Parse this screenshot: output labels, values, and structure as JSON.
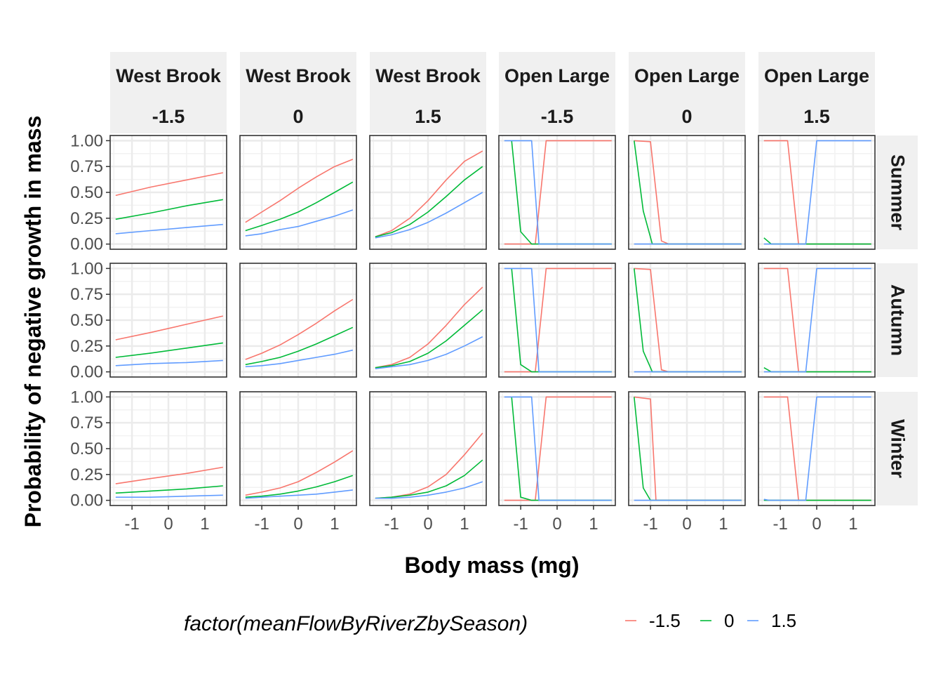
{
  "chart_data": {
    "type": "line",
    "xlabel": "Body mass (mg)",
    "ylabel": "Probability of negative growth in mass",
    "xlim": [
      -1.6,
      1.6
    ],
    "ylim": [
      0,
      1
    ],
    "x_ticks": [
      "-1",
      "0",
      "1"
    ],
    "x_tick_values": [
      -1,
      0,
      1
    ],
    "y_ticks": [
      "0.00",
      "0.25",
      "0.50",
      "0.75",
      "1.00"
    ],
    "y_tick_values": [
      0,
      0.25,
      0.5,
      0.75,
      1
    ],
    "grid": true,
    "legend": {
      "title": "factor(meanFlowByRiverZbySeason)",
      "position": "bottom",
      "entries": [
        {
          "label": "-1.5",
          "color": "#F8766D"
        },
        {
          "label": "0",
          "color": "#00BA38"
        },
        {
          "label": "1.5",
          "color": "#619CFF"
        }
      ]
    },
    "col_facets": [
      {
        "line1": "West Brook",
        "line2": "-1.5"
      },
      {
        "line1": "West Brook",
        "line2": "0"
      },
      {
        "line1": "West Brook",
        "line2": "1.5"
      },
      {
        "line1": "Open Large",
        "line2": "-1.5"
      },
      {
        "line1": "Open Large",
        "line2": "0"
      },
      {
        "line1": "Open Large",
        "line2": "1.5"
      }
    ],
    "row_facets": [
      "Summer",
      "Autumn",
      "Winter"
    ],
    "panels": [
      [
        {
          "series": [
            {
              "x": [
                -1.45,
                -0.5,
                0.5,
                1.5
              ],
              "y": [
                0.47,
                0.55,
                0.62,
                0.69
              ]
            },
            {
              "x": [
                -1.45,
                -0.5,
                0.5,
                1.5
              ],
              "y": [
                0.24,
                0.3,
                0.37,
                0.43
              ]
            },
            {
              "x": [
                -1.45,
                -0.5,
                0.5,
                1.5
              ],
              "y": [
                0.1,
                0.13,
                0.16,
                0.19
              ]
            }
          ]
        },
        {
          "series": [
            {
              "x": [
                -1.45,
                -1.0,
                -0.5,
                0.0,
                0.5,
                1.0,
                1.5
              ],
              "y": [
                0.21,
                0.31,
                0.42,
                0.54,
                0.65,
                0.75,
                0.82
              ]
            },
            {
              "x": [
                -1.45,
                -1.0,
                -0.5,
                0.0,
                0.5,
                1.0,
                1.5
              ],
              "y": [
                0.13,
                0.18,
                0.24,
                0.31,
                0.4,
                0.5,
                0.6
              ]
            },
            {
              "x": [
                -1.45,
                -1.0,
                -0.5,
                0.0,
                0.5,
                1.0,
                1.5
              ],
              "y": [
                0.08,
                0.1,
                0.14,
                0.17,
                0.22,
                0.27,
                0.33
              ]
            }
          ]
        },
        {
          "series": [
            {
              "x": [
                -1.45,
                -1.0,
                -0.5,
                0.0,
                0.5,
                1.0,
                1.5
              ],
              "y": [
                0.07,
                0.13,
                0.25,
                0.42,
                0.62,
                0.8,
                0.9
              ]
            },
            {
              "x": [
                -1.45,
                -1.0,
                -0.5,
                0.0,
                0.5,
                1.0,
                1.5
              ],
              "y": [
                0.07,
                0.11,
                0.19,
                0.31,
                0.46,
                0.62,
                0.75
              ]
            },
            {
              "x": [
                -1.45,
                -1.0,
                -0.5,
                0.0,
                0.5,
                1.0,
                1.5
              ],
              "y": [
                0.06,
                0.09,
                0.14,
                0.21,
                0.3,
                0.4,
                0.5
              ]
            }
          ]
        },
        {
          "series": [
            {
              "x": [
                -1.45,
                -0.6,
                -0.3,
                1.5
              ],
              "y": [
                0.0,
                0.0,
                1.0,
                1.0
              ]
            },
            {
              "x": [
                -1.25,
                -1.0,
                -0.7,
                1.5
              ],
              "y": [
                1.0,
                0.12,
                0.0,
                0.0
              ]
            },
            {
              "x": [
                -1.45,
                -0.7,
                -0.5,
                1.5
              ],
              "y": [
                1.0,
                1.0,
                0.0,
                0.0
              ]
            }
          ]
        },
        {
          "series": [
            {
              "x": [
                -1.45,
                -1.0,
                -0.7,
                -0.5,
                1.5
              ],
              "y": [
                1.0,
                0.99,
                0.03,
                0.0,
                0.0
              ]
            },
            {
              "x": [
                -1.45,
                -1.2,
                -0.95,
                1.5
              ],
              "y": [
                1.0,
                0.32,
                0.0,
                0.0
              ]
            },
            {
              "x": [
                -1.45,
                1.5
              ],
              "y": [
                0.0,
                0.0
              ]
            }
          ]
        },
        {
          "series": [
            {
              "x": [
                -1.45,
                -0.8,
                -0.5,
                1.5
              ],
              "y": [
                1.0,
                1.0,
                0.0,
                0.0
              ]
            },
            {
              "x": [
                -1.45,
                -1.25,
                1.5
              ],
              "y": [
                0.06,
                0.0,
                0.0
              ]
            },
            {
              "x": [
                -1.45,
                -0.3,
                0.0,
                1.5
              ],
              "y": [
                0.0,
                0.0,
                1.0,
                1.0
              ]
            }
          ]
        }
      ],
      [
        {
          "series": [
            {
              "x": [
                -1.45,
                -0.5,
                0.5,
                1.5
              ],
              "y": [
                0.31,
                0.38,
                0.46,
                0.54
              ]
            },
            {
              "x": [
                -1.45,
                -0.5,
                0.5,
                1.5
              ],
              "y": [
                0.14,
                0.18,
                0.23,
                0.28
              ]
            },
            {
              "x": [
                -1.45,
                -0.5,
                0.5,
                1.5
              ],
              "y": [
                0.06,
                0.08,
                0.09,
                0.11
              ]
            }
          ]
        },
        {
          "series": [
            {
              "x": [
                -1.45,
                -1.0,
                -0.5,
                0.0,
                0.5,
                1.0,
                1.5
              ],
              "y": [
                0.12,
                0.18,
                0.26,
                0.36,
                0.47,
                0.59,
                0.7
              ]
            },
            {
              "x": [
                -1.45,
                -1.0,
                -0.5,
                0.0,
                0.5,
                1.0,
                1.5
              ],
              "y": [
                0.07,
                0.1,
                0.14,
                0.2,
                0.27,
                0.35,
                0.43
              ]
            },
            {
              "x": [
                -1.45,
                -1.0,
                -0.5,
                0.0,
                0.5,
                1.0,
                1.5
              ],
              "y": [
                0.05,
                0.06,
                0.08,
                0.11,
                0.14,
                0.17,
                0.21
              ]
            }
          ]
        },
        {
          "series": [
            {
              "x": [
                -1.45,
                -1.0,
                -0.5,
                0.0,
                0.5,
                1.0,
                1.5
              ],
              "y": [
                0.04,
                0.07,
                0.14,
                0.27,
                0.45,
                0.65,
                0.82
              ]
            },
            {
              "x": [
                -1.45,
                -1.0,
                -0.5,
                0.0,
                0.5,
                1.0,
                1.5
              ],
              "y": [
                0.04,
                0.06,
                0.1,
                0.18,
                0.3,
                0.45,
                0.6
              ]
            },
            {
              "x": [
                -1.45,
                -1.0,
                -0.5,
                0.0,
                0.5,
                1.0,
                1.5
              ],
              "y": [
                0.03,
                0.05,
                0.07,
                0.11,
                0.17,
                0.25,
                0.34
              ]
            }
          ]
        },
        {
          "series": [
            {
              "x": [
                -1.45,
                -0.6,
                -0.3,
                1.5
              ],
              "y": [
                0.0,
                0.0,
                1.0,
                1.0
              ]
            },
            {
              "x": [
                -1.25,
                -1.0,
                -0.7,
                1.5
              ],
              "y": [
                1.0,
                0.07,
                0.0,
                0.0
              ]
            },
            {
              "x": [
                -1.45,
                -0.7,
                -0.5,
                1.5
              ],
              "y": [
                1.0,
                1.0,
                0.0,
                0.0
              ]
            }
          ]
        },
        {
          "series": [
            {
              "x": [
                -1.45,
                -1.0,
                -0.7,
                -0.5,
                1.5
              ],
              "y": [
                1.0,
                0.99,
                0.02,
                0.0,
                0.0
              ]
            },
            {
              "x": [
                -1.45,
                -1.2,
                -0.95,
                1.5
              ],
              "y": [
                1.0,
                0.2,
                0.0,
                0.0
              ]
            },
            {
              "x": [
                -1.45,
                1.5
              ],
              "y": [
                0.0,
                0.0
              ]
            }
          ]
        },
        {
          "series": [
            {
              "x": [
                -1.45,
                -0.8,
                -0.5,
                1.5
              ],
              "y": [
                1.0,
                1.0,
                0.0,
                0.0
              ]
            },
            {
              "x": [
                -1.45,
                -1.25,
                1.5
              ],
              "y": [
                0.04,
                0.0,
                0.0
              ]
            },
            {
              "x": [
                -1.45,
                -0.3,
                0.0,
                1.5
              ],
              "y": [
                0.0,
                0.0,
                1.0,
                1.0
              ]
            }
          ]
        }
      ],
      [
        {
          "series": [
            {
              "x": [
                -1.45,
                -0.5,
                0.5,
                1.5
              ],
              "y": [
                0.16,
                0.21,
                0.26,
                0.32
              ]
            },
            {
              "x": [
                -1.45,
                -0.5,
                0.5,
                1.5
              ],
              "y": [
                0.07,
                0.09,
                0.11,
                0.14
              ]
            },
            {
              "x": [
                -1.45,
                -0.5,
                0.5,
                1.5
              ],
              "y": [
                0.03,
                0.03,
                0.04,
                0.05
              ]
            }
          ]
        },
        {
          "series": [
            {
              "x": [
                -1.45,
                -1.0,
                -0.5,
                0.0,
                0.5,
                1.0,
                1.5
              ],
              "y": [
                0.05,
                0.08,
                0.12,
                0.18,
                0.27,
                0.37,
                0.48
              ]
            },
            {
              "x": [
                -1.45,
                -1.0,
                -0.5,
                0.0,
                0.5,
                1.0,
                1.5
              ],
              "y": [
                0.03,
                0.04,
                0.06,
                0.09,
                0.13,
                0.18,
                0.24
              ]
            },
            {
              "x": [
                -1.45,
                -1.0,
                -0.5,
                0.0,
                0.5,
                1.0,
                1.5
              ],
              "y": [
                0.02,
                0.03,
                0.04,
                0.05,
                0.06,
                0.08,
                0.1
              ]
            }
          ]
        },
        {
          "series": [
            {
              "x": [
                -1.45,
                -1.0,
                -0.5,
                0.0,
                0.5,
                1.0,
                1.5
              ],
              "y": [
                0.02,
                0.03,
                0.06,
                0.13,
                0.25,
                0.44,
                0.65
              ]
            },
            {
              "x": [
                -1.45,
                -1.0,
                -0.5,
                0.0,
                0.5,
                1.0,
                1.5
              ],
              "y": [
                0.02,
                0.03,
                0.05,
                0.08,
                0.14,
                0.24,
                0.39
              ]
            },
            {
              "x": [
                -1.45,
                -1.0,
                -0.5,
                0.0,
                0.5,
                1.0,
                1.5
              ],
              "y": [
                0.02,
                0.02,
                0.03,
                0.05,
                0.08,
                0.12,
                0.18
              ]
            }
          ]
        },
        {
          "series": [
            {
              "x": [
                -1.45,
                -0.6,
                -0.3,
                1.5
              ],
              "y": [
                0.0,
                0.0,
                1.0,
                1.0
              ]
            },
            {
              "x": [
                -1.25,
                -1.0,
                -0.7,
                1.5
              ],
              "y": [
                1.0,
                0.03,
                0.0,
                0.0
              ]
            },
            {
              "x": [
                -1.45,
                -0.7,
                -0.5,
                1.5
              ],
              "y": [
                1.0,
                1.0,
                0.0,
                0.0
              ]
            }
          ]
        },
        {
          "series": [
            {
              "x": [
                -1.45,
                -1.0,
                -0.85,
                1.5
              ],
              "y": [
                1.0,
                0.98,
                0.0,
                0.0
              ]
            },
            {
              "x": [
                -1.45,
                -1.2,
                -1.0,
                1.5
              ],
              "y": [
                1.0,
                0.12,
                0.0,
                0.0
              ]
            },
            {
              "x": [
                -1.45,
                1.5
              ],
              "y": [
                0.0,
                0.0
              ]
            }
          ]
        },
        {
          "series": [
            {
              "x": [
                -1.45,
                -0.8,
                -0.5,
                1.5
              ],
              "y": [
                1.0,
                1.0,
                0.0,
                0.0
              ]
            },
            {
              "x": [
                -1.45,
                1.5
              ],
              "y": [
                0.0,
                0.0
              ]
            },
            {
              "x": [
                -1.45,
                -1.3,
                -0.3,
                0.0,
                1.5
              ],
              "y": [
                0.01,
                0.0,
                0.0,
                1.0,
                1.0
              ]
            }
          ]
        }
      ]
    ]
  }
}
